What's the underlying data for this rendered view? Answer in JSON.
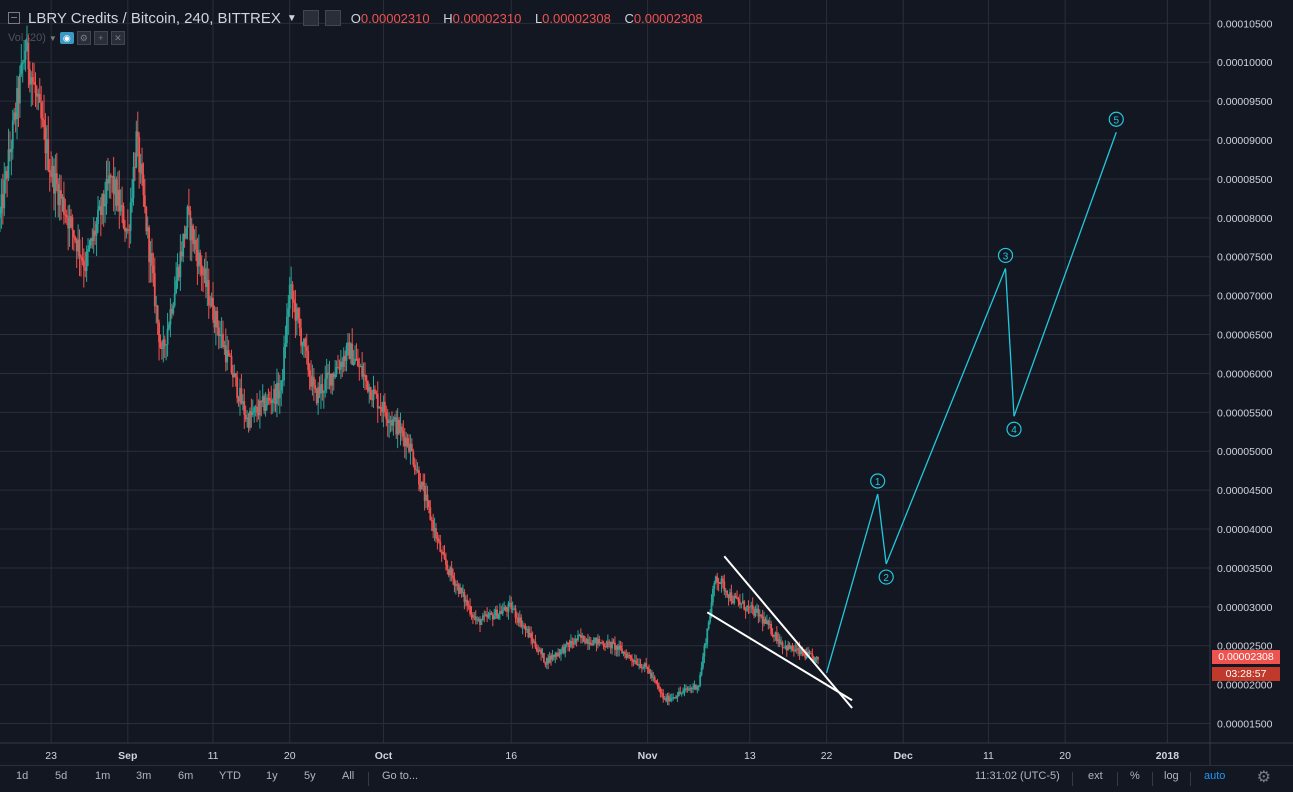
{
  "header": {
    "symbol": "LBRY Credits / Bitcoin, 240, BITTREX",
    "o_label": "O",
    "o_value": "0.00002310",
    "h_label": "H",
    "h_value": "0.00002310",
    "l_label": "L",
    "l_value": "0.00002308",
    "c_label": "C",
    "c_value": "0.00002308"
  },
  "volume": {
    "label": "Vol (20)"
  },
  "price_axis": {
    "ticks": [
      "0.00010500",
      "0.00010000",
      "0.00009500",
      "0.00009000",
      "0.00008500",
      "0.00008000",
      "0.00007500",
      "0.00007000",
      "0.00006500",
      "0.00006000",
      "0.00005500",
      "0.00005000",
      "0.00004500",
      "0.00004000",
      "0.00003500",
      "0.00003000",
      "0.00002500",
      "0.00002000",
      "0.00001500"
    ],
    "last_price": "0.00002308",
    "countdown": "03:28:57"
  },
  "time_axis": {
    "ticks": [
      "23",
      "Sep",
      "11",
      "20",
      "Oct",
      "16",
      "Nov",
      "13",
      "22",
      "Dec",
      "11",
      "20",
      "2018"
    ]
  },
  "bottom": {
    "ranges": [
      "1d",
      "5d",
      "1m",
      "3m",
      "6m",
      "YTD",
      "1y",
      "5y",
      "All",
      "Go to..."
    ],
    "time": "11:31:02 (UTC-5)",
    "ext": "ext",
    "pct": "%",
    "log": "log",
    "auto": "auto"
  },
  "colors": {
    "up": "#26a69a",
    "down": "#ef5350",
    "wave": "#22c8dc",
    "trendline": "#ffffff",
    "background": "#131722"
  },
  "chart_data": {
    "type": "candlestick",
    "title": "LBRY Credits / Bitcoin, 240, BITTREX",
    "interval": "240",
    "y_axis": "price (BTC)",
    "ylim": [
      1.25e-05,
      0.000108
    ],
    "x_range": [
      "2017-08-17",
      "2018-01-06"
    ],
    "grid": true,
    "approx_price_path": [
      {
        "date": "2017-08-17",
        "price": 8e-05
      },
      {
        "date": "2017-08-20",
        "price": 0.000102
      },
      {
        "date": "2017-08-23",
        "price": 8.6e-05
      },
      {
        "date": "2017-08-27",
        "price": 7.4e-05
      },
      {
        "date": "2017-08-30",
        "price": 8.5e-05
      },
      {
        "date": "2017-09-01",
        "price": 7.8e-05
      },
      {
        "date": "2017-09-02",
        "price": 9e-05
      },
      {
        "date": "2017-09-05",
        "price": 6.2e-05
      },
      {
        "date": "2017-09-08",
        "price": 8e-05
      },
      {
        "date": "2017-09-11",
        "price": 6.8e-05
      },
      {
        "date": "2017-09-15",
        "price": 5.4e-05
      },
      {
        "date": "2017-09-19",
        "price": 5.8e-05
      },
      {
        "date": "2017-09-20",
        "price": 7.1e-05
      },
      {
        "date": "2017-09-23",
        "price": 5.7e-05
      },
      {
        "date": "2017-09-27",
        "price": 6.3e-05
      },
      {
        "date": "2017-09-30",
        "price": 5.7e-05
      },
      {
        "date": "2017-10-04",
        "price": 5.1e-05
      },
      {
        "date": "2017-10-08",
        "price": 3.6e-05
      },
      {
        "date": "2017-10-12",
        "price": 2.8e-05
      },
      {
        "date": "2017-10-16",
        "price": 3e-05
      },
      {
        "date": "2017-10-20",
        "price": 2.3e-05
      },
      {
        "date": "2017-10-24",
        "price": 2.6e-05
      },
      {
        "date": "2017-10-28",
        "price": 2.5e-05
      },
      {
        "date": "2017-11-01",
        "price": 2.2e-05
      },
      {
        "date": "2017-11-03",
        "price": 1.8e-05
      },
      {
        "date": "2017-11-07",
        "price": 2e-05
      },
      {
        "date": "2017-11-09",
        "price": 3.4e-05
      },
      {
        "date": "2017-11-11",
        "price": 3.1e-05
      },
      {
        "date": "2017-11-14",
        "price": 2.9e-05
      },
      {
        "date": "2017-11-17",
        "price": 2.5e-05
      },
      {
        "date": "2017-11-21",
        "price": 2.31e-05
      }
    ],
    "drawings": {
      "wedge_lines": [
        [
          {
            "date": "2017-11-10",
            "price": 3.65e-05
          },
          {
            "date": "2017-11-25",
            "price": 1.7e-05
          }
        ],
        [
          {
            "date": "2017-11-08",
            "price": 2.93e-05
          },
          {
            "date": "2017-11-25",
            "price": 1.8e-05
          }
        ]
      ],
      "wave_path": [
        {
          "label": "",
          "date": "2017-11-22",
          "price": 2.15e-05
        },
        {
          "label": "1",
          "date": "2017-11-28",
          "price": 4.45e-05
        },
        {
          "label": "2",
          "date": "2017-11-29",
          "price": 3.55e-05
        },
        {
          "label": "3",
          "date": "2017-12-13",
          "price": 7.35e-05
        },
        {
          "label": "4",
          "date": "2017-12-14",
          "price": 5.45e-05
        },
        {
          "label": "5",
          "date": "2017-12-26",
          "price": 9.1e-05
        }
      ]
    }
  }
}
